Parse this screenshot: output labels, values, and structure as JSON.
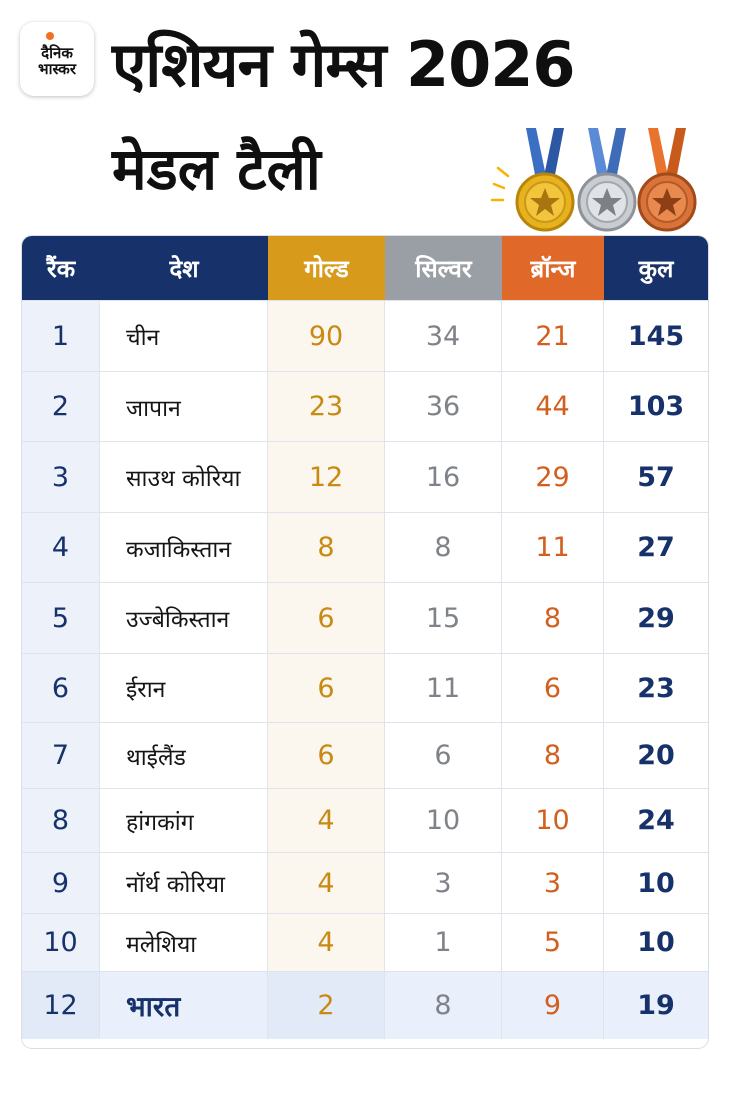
{
  "logo": {
    "line1": "दैनिक",
    "line2": "भास्कर"
  },
  "title": {
    "line1": "एशियन गेम्स 2026",
    "line2": "मेडल टैली"
  },
  "colors": {
    "navy": "#17326b",
    "gold": "#d89a1a",
    "silver": "#9a9ea5",
    "bronze": "#e0692a"
  },
  "medal_icons": [
    "gold-medal-icon",
    "silver-medal-icon",
    "bronze-medal-icon"
  ],
  "table": {
    "headers": [
      "रैंक",
      "देश",
      "गोल्ड",
      "सिल्वर",
      "ब्रॉन्ज",
      "कुल"
    ],
    "rows": [
      {
        "rank": "1",
        "country": "चीन",
        "gold": "90",
        "silver": "34",
        "bronze": "21",
        "total": "145"
      },
      {
        "rank": "2",
        "country": "जापान",
        "gold": "23",
        "silver": "36",
        "bronze": "44",
        "total": "103"
      },
      {
        "rank": "3",
        "country": "साउथ कोरिया",
        "gold": "12",
        "silver": "16",
        "bronze": "29",
        "total": "57"
      },
      {
        "rank": "4",
        "country": "कजाकिस्तान",
        "gold": "8",
        "silver": "8",
        "bronze": "11",
        "total": "27"
      },
      {
        "rank": "5",
        "country": "उज्बेकिस्तान",
        "gold": "6",
        "silver": "15",
        "bronze": "8",
        "total": "29"
      },
      {
        "rank": "6",
        "country": "ईरान",
        "gold": "6",
        "silver": "11",
        "bronze": "6",
        "total": "23"
      },
      {
        "rank": "7",
        "country": "थाईलैंड",
        "gold": "6",
        "silver": "6",
        "bronze": "8",
        "total": "20"
      },
      {
        "rank": "8",
        "country": "हांगकांग",
        "gold": "4",
        "silver": "10",
        "bronze": "10",
        "total": "24"
      },
      {
        "rank": "9",
        "country": "नॉर्थ कोरिया",
        "gold": "4",
        "silver": "3",
        "bronze": "3",
        "total": "10"
      },
      {
        "rank": "10",
        "country": "मलेशिया",
        "gold": "4",
        "silver": "1",
        "bronze": "5",
        "total": "10"
      },
      {
        "rank": "12",
        "country": "भारत",
        "gold": "2",
        "silver": "8",
        "bronze": "9",
        "total": "19"
      }
    ]
  }
}
